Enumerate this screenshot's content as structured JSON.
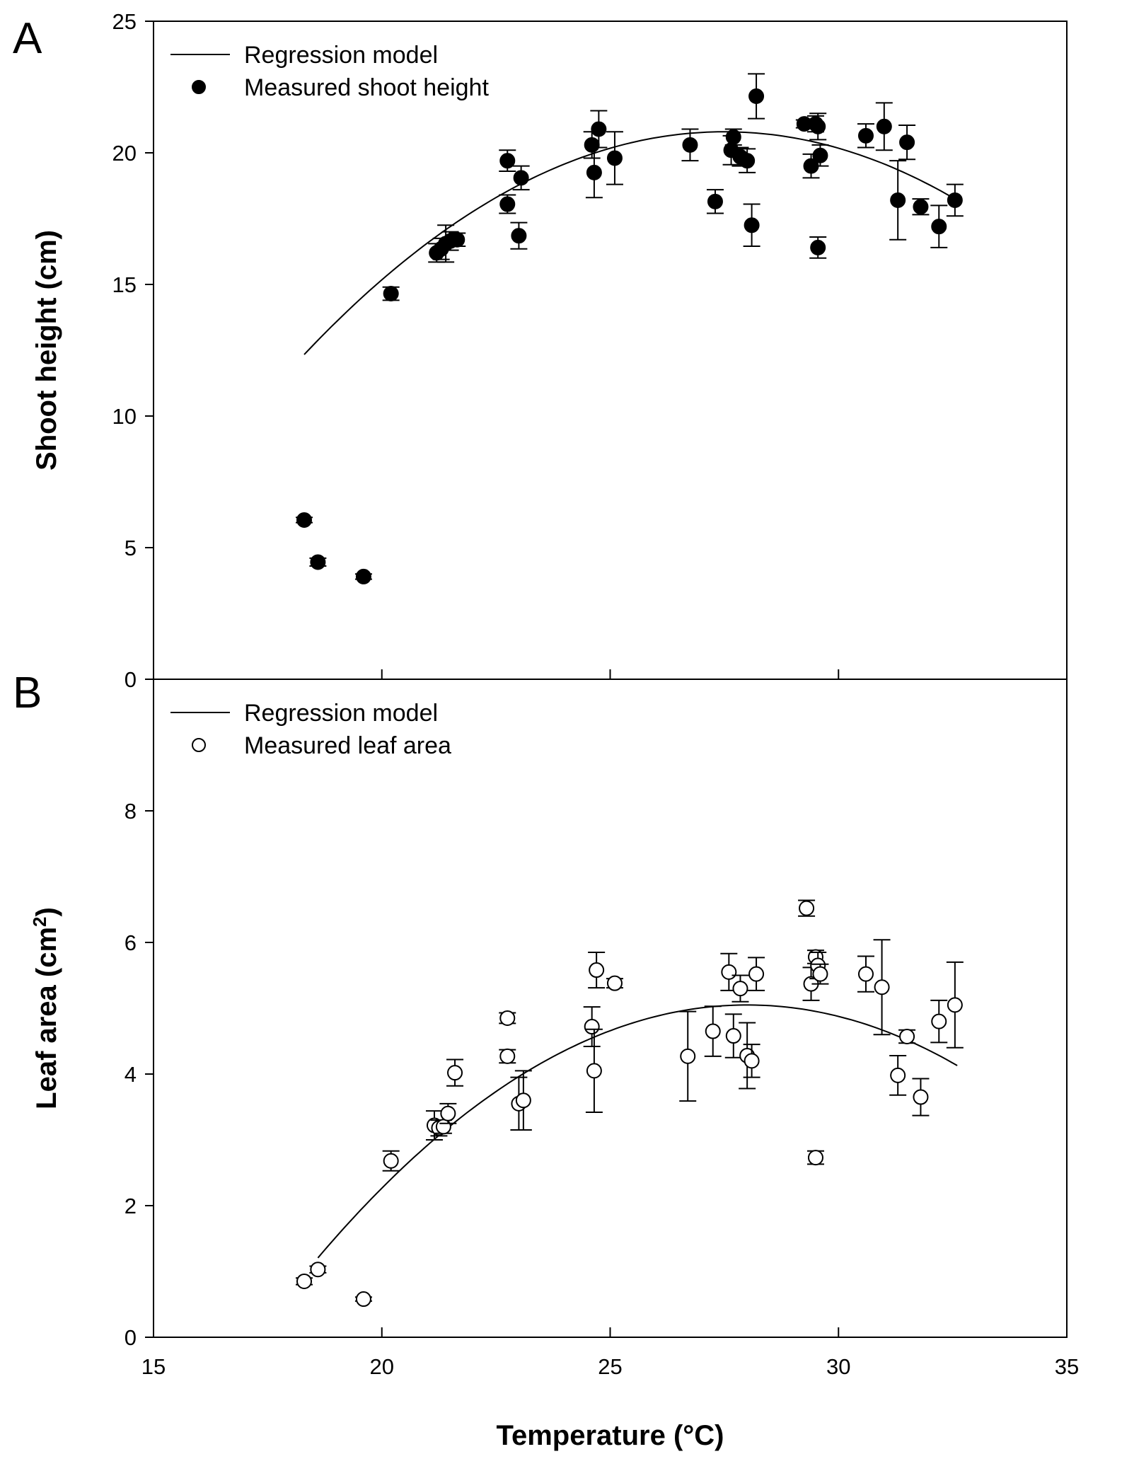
{
  "chart_data": [
    {
      "type": "scatter",
      "panel_label": "A",
      "ylabel": "Shoot height (cm)",
      "xlabel": "",
      "xlim": [
        15,
        35
      ],
      "ylim": [
        0,
        25
      ],
      "x_ticks": [
        "15",
        "20",
        "25",
        "30",
        "35"
      ],
      "y_ticks": [
        "0",
        "5",
        "10",
        "15",
        "20",
        "25"
      ],
      "legend": [
        "Regression model",
        "Measured shoot height"
      ],
      "legend_position": "top-left",
      "marker": "filled-circle",
      "regression": {
        "peak_x": 27.5,
        "peak_y": 20.8,
        "curvature": 0.1,
        "x_range": [
          18.3,
          32.6
        ]
      },
      "points": [
        {
          "x": 18.3,
          "y": 6.05,
          "err": 0.1
        },
        {
          "x": 18.6,
          "y": 4.45,
          "err": 0.15
        },
        {
          "x": 19.6,
          "y": 3.9,
          "err": 0.1
        },
        {
          "x": 20.2,
          "y": 14.65,
          "err": 0.25
        },
        {
          "x": 21.2,
          "y": 16.2,
          "err": 0.35
        },
        {
          "x": 21.3,
          "y": 16.35,
          "err": 0.4
        },
        {
          "x": 21.4,
          "y": 16.55,
          "err": 0.7
        },
        {
          "x": 21.5,
          "y": 16.65,
          "err": 0.35
        },
        {
          "x": 21.65,
          "y": 16.7,
          "err": 0.25
        },
        {
          "x": 22.75,
          "y": 19.7,
          "err": 0.4
        },
        {
          "x": 22.75,
          "y": 18.05,
          "err": 0.35
        },
        {
          "x": 23.0,
          "y": 16.85,
          "err": 0.5
        },
        {
          "x": 23.05,
          "y": 19.05,
          "err": 0.45
        },
        {
          "x": 24.6,
          "y": 20.3,
          "err": 0.5
        },
        {
          "x": 24.65,
          "y": 19.25,
          "err": 0.95
        },
        {
          "x": 24.75,
          "y": 20.9,
          "err": 0.7
        },
        {
          "x": 25.1,
          "y": 19.8,
          "err": 1.0
        },
        {
          "x": 26.75,
          "y": 20.3,
          "err": 0.6
        },
        {
          "x": 27.3,
          "y": 18.15,
          "err": 0.45
        },
        {
          "x": 27.65,
          "y": 20.1,
          "err": 0.55
        },
        {
          "x": 27.7,
          "y": 20.6,
          "err": 0.3
        },
        {
          "x": 27.85,
          "y": 19.85,
          "err": 0.35
        },
        {
          "x": 28.0,
          "y": 19.7,
          "err": 0.45
        },
        {
          "x": 28.1,
          "y": 17.25,
          "err": 0.8
        },
        {
          "x": 28.2,
          "y": 22.15,
          "err": 0.85
        },
        {
          "x": 29.25,
          "y": 21.1,
          "err": 0.15
        },
        {
          "x": 29.4,
          "y": 19.5,
          "err": 0.45
        },
        {
          "x": 29.5,
          "y": 21.1,
          "err": 0.3
        },
        {
          "x": 29.55,
          "y": 16.4,
          "err": 0.4
        },
        {
          "x": 29.55,
          "y": 21.0,
          "err": 0.5
        },
        {
          "x": 29.6,
          "y": 19.9,
          "err": 0.4
        },
        {
          "x": 30.6,
          "y": 20.65,
          "err": 0.45
        },
        {
          "x": 31.0,
          "y": 21.0,
          "err": 0.9
        },
        {
          "x": 31.3,
          "y": 18.2,
          "err": 1.5
        },
        {
          "x": 31.5,
          "y": 20.4,
          "err": 0.65
        },
        {
          "x": 31.8,
          "y": 17.95,
          "err": 0.3
        },
        {
          "x": 32.2,
          "y": 17.2,
          "err": 0.8
        },
        {
          "x": 32.55,
          "y": 18.2,
          "err": 0.6
        }
      ]
    },
    {
      "type": "scatter",
      "panel_label": "B",
      "ylabel": "Leaf area (cm",
      "ylabel_superscript": "2",
      "ylabel_suffix": ")",
      "xlabel": "Temperature (°C)",
      "xlim": [
        15,
        35
      ],
      "ylim": [
        0,
        10
      ],
      "x_ticks": [
        "15",
        "20",
        "25",
        "30",
        "35"
      ],
      "y_ticks": [
        "0",
        "2",
        "4",
        "6",
        "8"
      ],
      "legend": [
        "Regression model",
        "Measured leaf area"
      ],
      "legend_position": "top-left",
      "marker": "open-circle",
      "regression": {
        "peak_x": 28.0,
        "peak_y": 5.05,
        "curvature": 0.0435,
        "x_range": [
          18.6,
          32.6
        ]
      },
      "points": [
        {
          "x": 18.3,
          "y": 0.85,
          "err": 0.05
        },
        {
          "x": 18.6,
          "y": 1.03,
          "err": 0.05
        },
        {
          "x": 19.6,
          "y": 0.58,
          "err": 0.03
        },
        {
          "x": 20.2,
          "y": 2.68,
          "err": 0.15
        },
        {
          "x": 21.15,
          "y": 3.22,
          "err": 0.22
        },
        {
          "x": 21.25,
          "y": 3.18,
          "err": 0.12
        },
        {
          "x": 21.35,
          "y": 3.2,
          "err": 0.1
        },
        {
          "x": 21.45,
          "y": 3.4,
          "err": 0.15
        },
        {
          "x": 21.6,
          "y": 4.02,
          "err": 0.2
        },
        {
          "x": 22.75,
          "y": 4.85,
          "err": 0.08
        },
        {
          "x": 22.75,
          "y": 4.27,
          "err": 0.1
        },
        {
          "x": 23.0,
          "y": 3.55,
          "err": 0.4
        },
        {
          "x": 23.1,
          "y": 3.6,
          "err": 0.45
        },
        {
          "x": 24.6,
          "y": 4.72,
          "err": 0.3
        },
        {
          "x": 24.65,
          "y": 4.05,
          "err": 0.63
        },
        {
          "x": 24.7,
          "y": 5.58,
          "err": 0.27
        },
        {
          "x": 25.1,
          "y": 5.38,
          "err": 0.07
        },
        {
          "x": 26.7,
          "y": 4.27,
          "err": 0.68
        },
        {
          "x": 27.25,
          "y": 4.65,
          "err": 0.38
        },
        {
          "x": 27.6,
          "y": 5.55,
          "err": 0.28
        },
        {
          "x": 27.7,
          "y": 4.58,
          "err": 0.33
        },
        {
          "x": 27.85,
          "y": 5.3,
          "err": 0.2
        },
        {
          "x": 28.0,
          "y": 4.28,
          "err": 0.5
        },
        {
          "x": 28.1,
          "y": 4.2,
          "err": 0.25
        },
        {
          "x": 28.2,
          "y": 5.52,
          "err": 0.25
        },
        {
          "x": 29.3,
          "y": 6.52,
          "err": 0.12
        },
        {
          "x": 29.4,
          "y": 5.37,
          "err": 0.25
        },
        {
          "x": 29.5,
          "y": 5.78,
          "err": 0.1
        },
        {
          "x": 29.5,
          "y": 2.73,
          "err": 0.1
        },
        {
          "x": 29.55,
          "y": 5.65,
          "err": 0.2
        },
        {
          "x": 29.6,
          "y": 5.52,
          "err": 0.15
        },
        {
          "x": 30.6,
          "y": 5.52,
          "err": 0.27
        },
        {
          "x": 30.95,
          "y": 5.32,
          "err": 0.72
        },
        {
          "x": 31.3,
          "y": 3.98,
          "err": 0.3
        },
        {
          "x": 31.5,
          "y": 4.57,
          "err": 0.1
        },
        {
          "x": 31.8,
          "y": 3.65,
          "err": 0.28
        },
        {
          "x": 32.2,
          "y": 4.8,
          "err": 0.32
        },
        {
          "x": 32.55,
          "y": 5.05,
          "err": 0.65
        }
      ]
    }
  ]
}
